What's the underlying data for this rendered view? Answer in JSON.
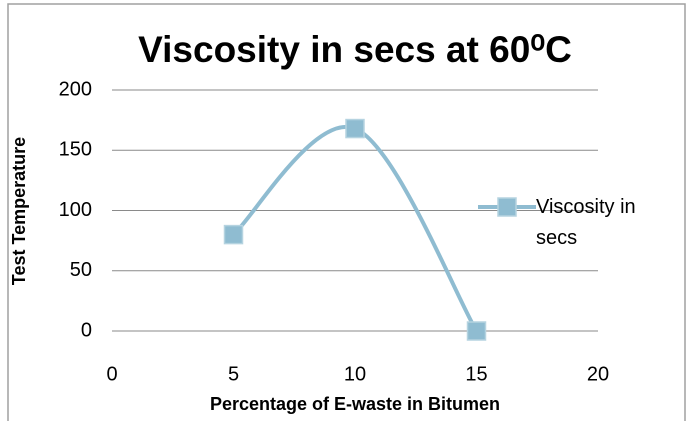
{
  "chart_data": {
    "type": "scatter",
    "title": "Viscosity in secs at 60⁰C",
    "x_label": "Percentage of E-waste in Bitumen",
    "y_label": "Test Temperature",
    "series": [
      {
        "name": "Viscosity in secs",
        "color": "#8fbcd1",
        "x": [
          5,
          10,
          15
        ],
        "values": [
          80,
          168,
          0
        ]
      }
    ],
    "xlim": [
      0,
      20
    ],
    "xticks": [
      0,
      5,
      10,
      15,
      20
    ],
    "ylim": [
      0,
      200
    ],
    "yticks": [
      0,
      50,
      100,
      150,
      200
    ],
    "grid": true,
    "legend": "right",
    "smooth": true
  }
}
